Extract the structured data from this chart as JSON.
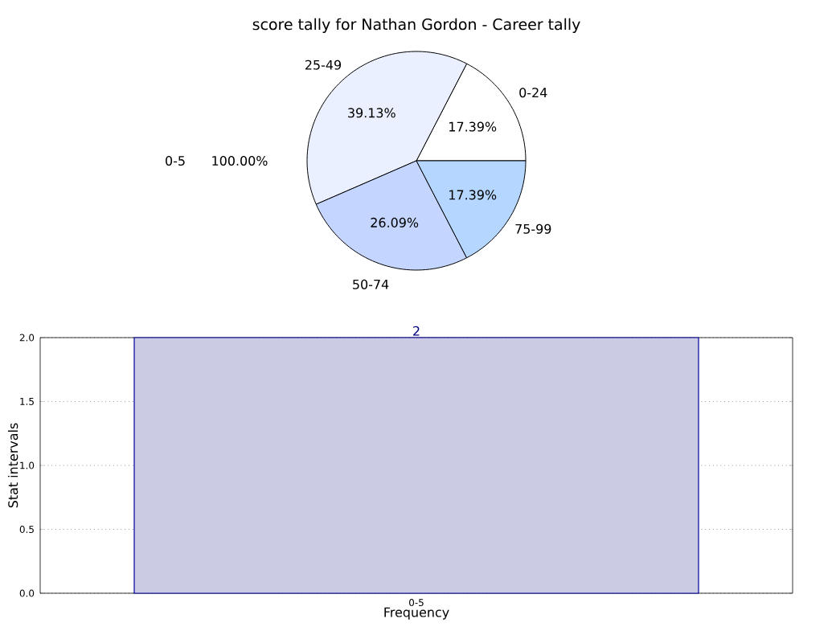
{
  "chart_data": [
    {
      "type": "pie",
      "title": "score tally for Nathan Gordon - Career tally",
      "categories": [
        "0-24",
        "25-49",
        "50-74",
        "75-99"
      ],
      "values": [
        17.39,
        39.13,
        26.09,
        17.39
      ],
      "colors": [
        "#ffffff",
        "#eaf0ff",
        "#c4d6ff",
        "#b4d6ff"
      ],
      "value_labels": [
        "17.39%",
        "39.13%",
        "26.09%",
        "17.39%"
      ],
      "annotations": [
        "0-5",
        "100.00%"
      ]
    },
    {
      "type": "bar",
      "categories": [
        "0-5"
      ],
      "values": [
        2
      ],
      "color": "#cbcce4",
      "xlabel": "Frequency",
      "ylabel": "Stat intervals",
      "ylim": [
        0,
        2
      ],
      "yticks": [
        {
          "value": 0,
          "label": "0.0"
        },
        {
          "value": 0.5,
          "label": "0.5"
        },
        {
          "value": 1,
          "label": "1.0"
        },
        {
          "value": 1.5,
          "label": "1.5"
        },
        {
          "value": 2,
          "label": "2.0"
        }
      ],
      "grid": true,
      "data_labels": true
    }
  ]
}
